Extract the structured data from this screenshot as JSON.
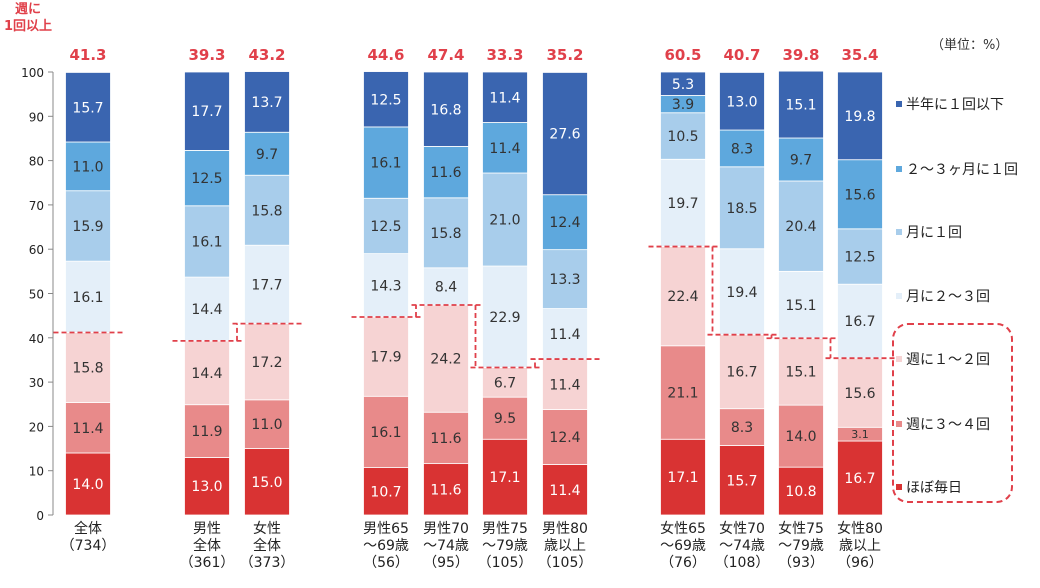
{
  "unit_label": "（単位：%）",
  "chart_data": {
    "type": "bar",
    "stacked": true,
    "orientation": "vertical",
    "ylim": [
      0,
      100
    ],
    "yticks": [
      0,
      10,
      20,
      30,
      40,
      50,
      60,
      70,
      80,
      90,
      100
    ],
    "grid": false,
    "legend_position": "right",
    "top_label_header": "週に\n1回以上",
    "categories": [
      "全体\n（734）",
      "男性\n全体\n（361）",
      "女性\n全体\n（373）",
      "男性65\n～69歳\n（56）",
      "男性70\n～74歳\n（95）",
      "男性75\n～79歳\n（105）",
      "男性80\n歳以上\n（105）",
      "女性65\n～69歳\n（76）",
      "女性70\n～74歳\n（108）",
      "女性75\n～79歳\n（93）",
      "女性80\n歳以上\n（96）"
    ],
    "weekly_or_more_totals": [
      "41.3",
      "39.3",
      "43.2",
      "44.6",
      "47.4",
      "33.3",
      "35.2",
      "60.5",
      "40.7",
      "39.8",
      "35.4"
    ],
    "series": [
      {
        "name": "ほぼ毎日",
        "color": "#d93333",
        "text_color": "#ffffff",
        "values": [
          14.0,
          13.0,
          15.0,
          10.7,
          11.6,
          17.1,
          11.4,
          17.1,
          15.7,
          10.8,
          16.7
        ],
        "labels": [
          "14.0",
          "13.0",
          "15.0",
          "10.7",
          "11.6",
          "17.1",
          "11.4",
          "17.1",
          "15.7",
          "10.8",
          "16.7"
        ]
      },
      {
        "name": "週に３～４回",
        "color": "#e88a8a",
        "text_color": "#333333",
        "values": [
          11.4,
          11.9,
          11.0,
          16.1,
          11.6,
          9.5,
          12.4,
          21.1,
          8.3,
          14.0,
          3.1
        ],
        "labels": [
          "11.4",
          "11.9",
          "11.0",
          "16.1",
          "11.6",
          "9.5",
          "12.4",
          "21.1",
          "8.3",
          "14.0",
          "3.1"
        ]
      },
      {
        "name": "週に１～２回",
        "color": "#f6d3d3",
        "text_color": "#333333",
        "values": [
          15.8,
          14.4,
          17.2,
          17.9,
          24.2,
          6.7,
          11.4,
          22.4,
          16.7,
          15.1,
          15.6
        ],
        "labels": [
          "15.8",
          "14.4",
          "17.2",
          "17.9",
          "24.2",
          "6.7",
          "11.4",
          "22.4",
          "16.7",
          "15.1",
          "15.6"
        ]
      },
      {
        "name": "月に２～３回",
        "color": "#e4eff9",
        "text_color": "#333333",
        "values": [
          16.1,
          14.4,
          17.7,
          14.3,
          8.4,
          22.9,
          11.4,
          19.7,
          19.4,
          15.1,
          16.7
        ],
        "labels": [
          "16.1",
          "14.4",
          "17.7",
          "14.3",
          "8.4",
          "22.9",
          "11.4",
          "19.7",
          "19.4",
          "15.1",
          "16.7"
        ]
      },
      {
        "name": "月に１回",
        "color": "#a8cdeb",
        "text_color": "#333333",
        "values": [
          15.9,
          16.1,
          15.8,
          12.5,
          15.8,
          21.0,
          13.3,
          10.5,
          18.5,
          20.4,
          12.5
        ],
        "labels": [
          "15.9",
          "16.1",
          "15.8",
          "12.5",
          "15.8",
          "21.0",
          "13.3",
          "10.5",
          "18.5",
          "20.4",
          "12.5"
        ]
      },
      {
        "name": "２～３ヶ月に１回",
        "color": "#5ea8dd",
        "text_color": "#333333",
        "values": [
          11.0,
          12.5,
          9.7,
          16.1,
          11.6,
          11.4,
          12.4,
          3.9,
          8.3,
          9.7,
          15.6
        ],
        "labels": [
          "11.0",
          "12.5",
          "9.7",
          "16.1",
          "11.6",
          "11.4",
          "12.4",
          "3.9",
          "8.3",
          "9.7",
          "15.6"
        ]
      },
      {
        "name": "半年に１回以下",
        "color": "#3a65b0",
        "text_color": "#ffffff",
        "values": [
          15.7,
          17.7,
          13.7,
          12.5,
          16.8,
          11.4,
          27.6,
          5.3,
          13.0,
          15.1,
          19.8
        ],
        "labels": [
          "15.7",
          "17.7",
          "13.7",
          "12.5",
          "16.8",
          "11.4",
          "27.6",
          "5.3",
          "13.0",
          "15.1",
          "19.8"
        ]
      }
    ],
    "legend_order": [
      "半年に１回以下",
      "２～３ヶ月に１回",
      "月に１回",
      "月に２～３回",
      "週に１～２回",
      "週に３～４回",
      "ほぼ毎日"
    ],
    "accent_color": "#e0404a"
  }
}
